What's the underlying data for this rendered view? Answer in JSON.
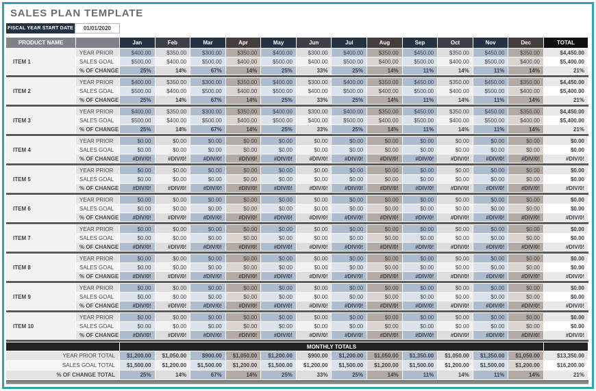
{
  "header": {
    "title": "SALES PLAN TEMPLATE",
    "fiscal_label": "FISCAL YEAR START DATE",
    "fiscal_date": "01/01/2020"
  },
  "colors": {
    "accent_teal": "#2aa2af",
    "header_navy": "#243244",
    "header_charcoal": "#3d4147",
    "header_brown": "#433e3b",
    "column_blue": "#aebccf",
    "column_gray": "#dddddd",
    "column_tan": "#b3aaa4",
    "dark_bar": "#222222",
    "fiscal_badge": "#233140"
  },
  "table": {
    "product_header": "PRODUCT NAME",
    "months": [
      "Jan",
      "Feb",
      "Mar",
      "Apr",
      "May",
      "Jun",
      "Jul",
      "Aug",
      "Sep",
      "Oct",
      "Nov",
      "Dec"
    ],
    "total_header": "TOTAL",
    "row_labels": {
      "year_prior": "YEAR PRIOR",
      "sales_goal": "SALES GOAL",
      "pct_change": "% OF CHANGE"
    },
    "items": [
      {
        "name": "ITEM 1",
        "year_prior": [
          "$400.00",
          "$350.00",
          "$300.00",
          "$350.00",
          "$400.00",
          "$300.00",
          "$400.00",
          "$350.00",
          "$450.00",
          "$350.00",
          "$450.00",
          "$350.00"
        ],
        "year_prior_total": "$4,450.00",
        "sales_goal": [
          "$500.00",
          "$400.00",
          "$500.00",
          "$400.00",
          "$500.00",
          "$400.00",
          "$500.00",
          "$400.00",
          "$500.00",
          "$400.00",
          "$500.00",
          "$400.00"
        ],
        "sales_goal_total": "$5,400.00",
        "pct_change": [
          "25%",
          "14%",
          "67%",
          "14%",
          "25%",
          "33%",
          "25%",
          "14%",
          "11%",
          "14%",
          "11%",
          "14%"
        ],
        "pct_change_total": "21%"
      },
      {
        "name": "ITEM 2",
        "year_prior": [
          "$400.00",
          "$350.00",
          "$300.00",
          "$350.00",
          "$400.00",
          "$300.00",
          "$400.00",
          "$350.00",
          "$450.00",
          "$350.00",
          "$450.00",
          "$350.00"
        ],
        "year_prior_total": "$4,450.00",
        "sales_goal": [
          "$500.00",
          "$400.00",
          "$500.00",
          "$400.00",
          "$500.00",
          "$400.00",
          "$500.00",
          "$400.00",
          "$500.00",
          "$400.00",
          "$500.00",
          "$400.00"
        ],
        "sales_goal_total": "$5,400.00",
        "pct_change": [
          "25%",
          "14%",
          "67%",
          "14%",
          "25%",
          "33%",
          "25%",
          "14%",
          "11%",
          "14%",
          "11%",
          "14%"
        ],
        "pct_change_total": "21%"
      },
      {
        "name": "ITEM 3",
        "year_prior": [
          "$400.00",
          "$350.00",
          "$300.00",
          "$350.00",
          "$400.00",
          "$300.00",
          "$400.00",
          "$350.00",
          "$450.00",
          "$350.00",
          "$450.00",
          "$350.00"
        ],
        "year_prior_total": "$4,450.00",
        "sales_goal": [
          "$500.00",
          "$400.00",
          "$500.00",
          "$400.00",
          "$500.00",
          "$400.00",
          "$500.00",
          "$400.00",
          "$500.00",
          "$400.00",
          "$500.00",
          "$400.00"
        ],
        "sales_goal_total": "$5,400.00",
        "pct_change": [
          "25%",
          "14%",
          "67%",
          "14%",
          "25%",
          "33%",
          "25%",
          "14%",
          "11%",
          "14%",
          "11%",
          "14%"
        ],
        "pct_change_total": "21%"
      },
      {
        "name": "ITEM 4",
        "year_prior": [
          "$0.00",
          "$0.00",
          "$0.00",
          "$0.00",
          "$0.00",
          "$0.00",
          "$0.00",
          "$0.00",
          "$0.00",
          "$0.00",
          "$0.00",
          "$0.00"
        ],
        "year_prior_total": "$0.00",
        "sales_goal": [
          "$0.00",
          "$0.00",
          "$0.00",
          "$0.00",
          "$0.00",
          "$0.00",
          "$0.00",
          "$0.00",
          "$0.00",
          "$0.00",
          "$0.00",
          "$0.00"
        ],
        "sales_goal_total": "$0.00",
        "pct_change": [
          "#DIV/0!",
          "#DIV/0!",
          "#DIV/0!",
          "#DIV/0!",
          "#DIV/0!",
          "#DIV/0!",
          "#DIV/0!",
          "#DIV/0!",
          "#DIV/0!",
          "#DIV/0!",
          "#DIV/0!",
          "#DIV/0!"
        ],
        "pct_change_total": "#DIV/0!"
      },
      {
        "name": "ITEM 5",
        "year_prior": [
          "$0.00",
          "$0.00",
          "$0.00",
          "$0.00",
          "$0.00",
          "$0.00",
          "$0.00",
          "$0.00",
          "$0.00",
          "$0.00",
          "$0.00",
          "$0.00"
        ],
        "year_prior_total": "$0.00",
        "sales_goal": [
          "$0.00",
          "$0.00",
          "$0.00",
          "$0.00",
          "$0.00",
          "$0.00",
          "$0.00",
          "$0.00",
          "$0.00",
          "$0.00",
          "$0.00",
          "$0.00"
        ],
        "sales_goal_total": "$0.00",
        "pct_change": [
          "#DIV/0!",
          "#DIV/0!",
          "#DIV/0!",
          "#DIV/0!",
          "#DIV/0!",
          "#DIV/0!",
          "#DIV/0!",
          "#DIV/0!",
          "#DIV/0!",
          "#DIV/0!",
          "#DIV/0!",
          "#DIV/0!"
        ],
        "pct_change_total": "#DIV/0!"
      },
      {
        "name": "ITEM 6",
        "year_prior": [
          "$0.00",
          "$0.00",
          "$0.00",
          "$0.00",
          "$0.00",
          "$0.00",
          "$0.00",
          "$0.00",
          "$0.00",
          "$0.00",
          "$0.00",
          "$0.00"
        ],
        "year_prior_total": "$0.00",
        "sales_goal": [
          "$0.00",
          "$0.00",
          "$0.00",
          "$0.00",
          "$0.00",
          "$0.00",
          "$0.00",
          "$0.00",
          "$0.00",
          "$0.00",
          "$0.00",
          "$0.00"
        ],
        "sales_goal_total": "$0.00",
        "pct_change": [
          "#DIV/0!",
          "#DIV/0!",
          "#DIV/0!",
          "#DIV/0!",
          "#DIV/0!",
          "#DIV/0!",
          "#DIV/0!",
          "#DIV/0!",
          "#DIV/0!",
          "#DIV/0!",
          "#DIV/0!",
          "#DIV/0!"
        ],
        "pct_change_total": "#DIV/0!"
      },
      {
        "name": "ITEM 7",
        "year_prior": [
          "$0.00",
          "$0.00",
          "$0.00",
          "$0.00",
          "$0.00",
          "$0.00",
          "$0.00",
          "$0.00",
          "$0.00",
          "$0.00",
          "$0.00",
          "$0.00"
        ],
        "year_prior_total": "$0.00",
        "sales_goal": [
          "$0.00",
          "$0.00",
          "$0.00",
          "$0.00",
          "$0.00",
          "$0.00",
          "$0.00",
          "$0.00",
          "$0.00",
          "$0.00",
          "$0.00",
          "$0.00"
        ],
        "sales_goal_total": "$0.00",
        "pct_change": [
          "#DIV/0!",
          "#DIV/0!",
          "#DIV/0!",
          "#DIV/0!",
          "#DIV/0!",
          "#DIV/0!",
          "#DIV/0!",
          "#DIV/0!",
          "#DIV/0!",
          "#DIV/0!",
          "#DIV/0!",
          "#DIV/0!"
        ],
        "pct_change_total": "#DIV/0!"
      },
      {
        "name": "ITEM 8",
        "year_prior": [
          "$0.00",
          "$0.00",
          "$0.00",
          "$0.00",
          "$0.00",
          "$0.00",
          "$0.00",
          "$0.00",
          "$0.00",
          "$0.00",
          "$0.00",
          "$0.00"
        ],
        "year_prior_total": "$0.00",
        "sales_goal": [
          "$0.00",
          "$0.00",
          "$0.00",
          "$0.00",
          "$0.00",
          "$0.00",
          "$0.00",
          "$0.00",
          "$0.00",
          "$0.00",
          "$0.00",
          "$0.00"
        ],
        "sales_goal_total": "$0.00",
        "pct_change": [
          "#DIV/0!",
          "#DIV/0!",
          "#DIV/0!",
          "#DIV/0!",
          "#DIV/0!",
          "#DIV/0!",
          "#DIV/0!",
          "#DIV/0!",
          "#DIV/0!",
          "#DIV/0!",
          "#DIV/0!",
          "#DIV/0!"
        ],
        "pct_change_total": "#DIV/0!"
      },
      {
        "name": "ITEM 9",
        "year_prior": [
          "$0.00",
          "$0.00",
          "$0.00",
          "$0.00",
          "$0.00",
          "$0.00",
          "$0.00",
          "$0.00",
          "$0.00",
          "$0.00",
          "$0.00",
          "$0.00"
        ],
        "year_prior_total": "$0.00",
        "sales_goal": [
          "$0.00",
          "$0.00",
          "$0.00",
          "$0.00",
          "$0.00",
          "$0.00",
          "$0.00",
          "$0.00",
          "$0.00",
          "$0.00",
          "$0.00",
          "$0.00"
        ],
        "sales_goal_total": "$0.00",
        "pct_change": [
          "#DIV/0!",
          "#DIV/0!",
          "#DIV/0!",
          "#DIV/0!",
          "#DIV/0!",
          "#DIV/0!",
          "#DIV/0!",
          "#DIV/0!",
          "#DIV/0!",
          "#DIV/0!",
          "#DIV/0!",
          "#DIV/0!"
        ],
        "pct_change_total": "#DIV/0!"
      },
      {
        "name": "ITEM 10",
        "year_prior": [
          "$0.00",
          "$0.00",
          "$0.00",
          "$0.00",
          "$0.00",
          "$0.00",
          "$0.00",
          "$0.00",
          "$0.00",
          "$0.00",
          "$0.00",
          "$0.00"
        ],
        "year_prior_total": "$0.00",
        "sales_goal": [
          "$0.00",
          "$0.00",
          "$0.00",
          "$0.00",
          "$0.00",
          "$0.00",
          "$0.00",
          "$0.00",
          "$0.00",
          "$0.00",
          "$0.00",
          "$0.00"
        ],
        "sales_goal_total": "$0.00",
        "pct_change": [
          "#DIV/0!",
          "#DIV/0!",
          "#DIV/0!",
          "#DIV/0!",
          "#DIV/0!",
          "#DIV/0!",
          "#DIV/0!",
          "#DIV/0!",
          "#DIV/0!",
          "#DIV/0!",
          "#DIV/0!",
          "#DIV/0!"
        ],
        "pct_change_total": "#DIV/0!"
      }
    ],
    "monthly_totals": {
      "title": "MONTHLY TOTALS",
      "rows": [
        {
          "label": "YEAR PRIOR TOTAL",
          "values": [
            "$1,200.00",
            "$1,050.00",
            "$900.00",
            "$1,050.00",
            "$1,200.00",
            "$900.00",
            "$1,200.00",
            "$1,050.00",
            "$1,350.00",
            "$1,050.00",
            "$1,350.00",
            "$1,050.00"
          ],
          "total": "$13,350.00"
        },
        {
          "label": "SALES GOAL TOTAL",
          "values": [
            "$1,500.00",
            "$1,200.00",
            "$1,500.00",
            "$1,200.00",
            "$1,500.00",
            "$1,200.00",
            "$1,500.00",
            "$1,200.00",
            "$1,500.00",
            "$1,200.00",
            "$1,500.00",
            "$1,200.00"
          ],
          "total": "$16,200.00"
        },
        {
          "label": "% OF CHANGE TOTAL",
          "values": [
            "25%",
            "14%",
            "67%",
            "14%",
            "25%",
            "33%",
            "25%",
            "14%",
            "11%",
            "14%",
            "11%",
            "14%"
          ],
          "total": "21%"
        }
      ]
    }
  }
}
